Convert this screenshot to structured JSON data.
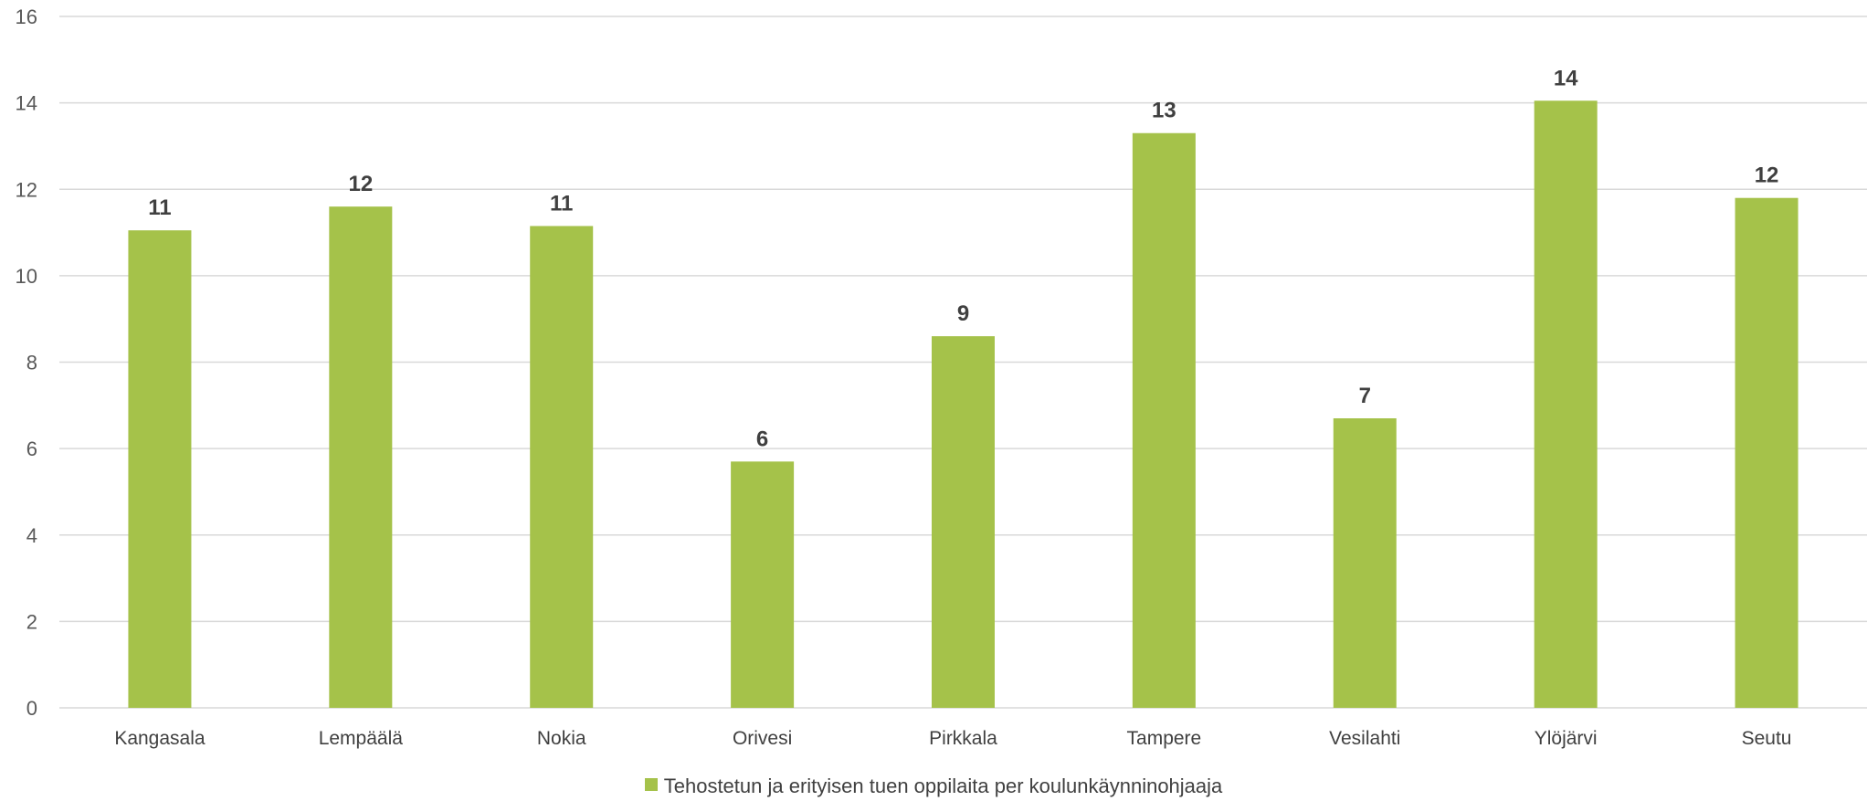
{
  "chart_data": {
    "type": "bar",
    "title": "",
    "xlabel": "",
    "ylabel": "",
    "categories": [
      "Kangasala",
      "Lempäälä",
      "Nokia",
      "Orivesi",
      "Pirkkala",
      "Tampere",
      "Vesilahti",
      "Ylöjärvi",
      "Seutu"
    ],
    "series": [
      {
        "name": "Tehostetun ja erityisen tuen oppilaita per koulunkäynninohjaaja",
        "values": [
          11.05,
          11.6,
          11.15,
          5.7,
          8.6,
          13.3,
          6.7,
          14.05,
          11.8
        ],
        "data_labels": [
          "11",
          "12",
          "11",
          "6",
          "9",
          "13",
          "7",
          "14",
          "12"
        ]
      }
    ],
    "ylim": [
      0,
      16
    ],
    "yticks": [
      "0",
      "2",
      "4",
      "6",
      "8",
      "10",
      "12",
      "14",
      "16"
    ],
    "grid": true,
    "legend_position": "bottom",
    "colors": {
      "bar": "#a5c24a",
      "grid": "#d9d9d9"
    }
  }
}
